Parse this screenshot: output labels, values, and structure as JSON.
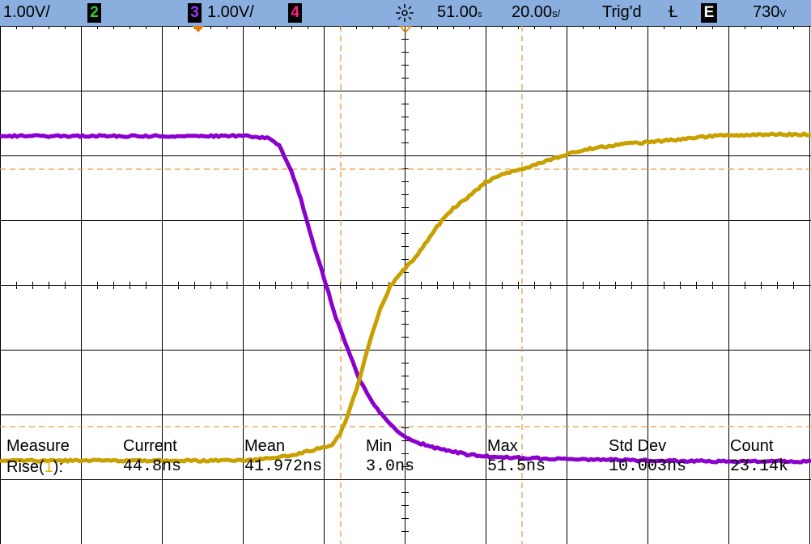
{
  "status_bar": {
    "ch1_scale": "1.00V/",
    "ch2_label": "2",
    "ch3_label": "3",
    "ch3_scale": "1.00V/",
    "ch4_label": "4",
    "time_position": "51.00",
    "time_position_unit": "s",
    "time_scale": "20.00",
    "time_scale_unit": "s/",
    "trigger_status": "Trig'd",
    "trigger_slope_symbol": "Ɫ",
    "trigger_source": "E",
    "trigger_level": "730",
    "trigger_level_unit": "V",
    "ch2_color": "#33cc33",
    "ch3_color": "#9933ff",
    "ch4_color": "#ff2288"
  },
  "colors": {
    "ch1_trace": "#c8a000",
    "ch3_trace": "#8a00cc",
    "cursor": "#e89a3c",
    "grid": "#000000"
  },
  "measurements": {
    "row_label": "Measure",
    "name_prefix": "Rise(",
    "name_channel": "1",
    "name_suffix": "):",
    "columns": [
      {
        "header": "Current",
        "value": "44.8ns"
      },
      {
        "header": "Mean",
        "value": "41.972ns"
      },
      {
        "header": "Min",
        "value": "3.0ns"
      },
      {
        "header": "Max",
        "value": "51.5ns"
      },
      {
        "header": "Std Dev",
        "value": "10.003ns"
      },
      {
        "header": "Count",
        "value": "23.14k"
      }
    ]
  }
}
